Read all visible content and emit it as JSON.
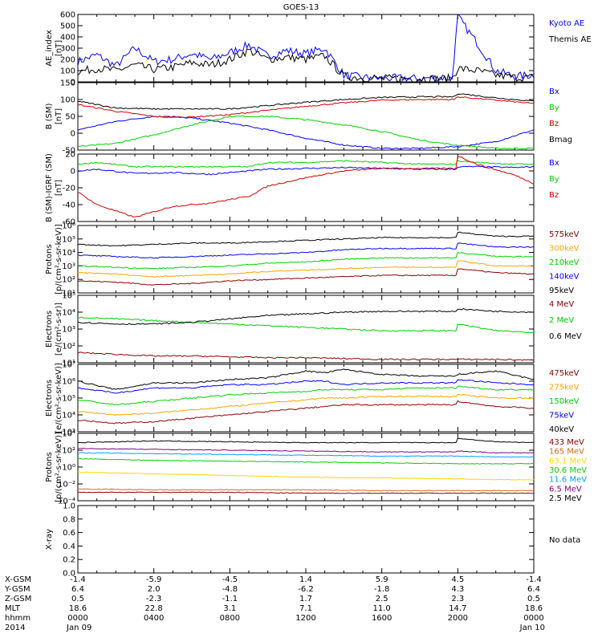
{
  "title": "GOES-13",
  "colors": {
    "black": "#000000",
    "blue": "#0000ff",
    "red": "#d40000",
    "green": "#00d000",
    "orange": "#ffa500",
    "darkred": "#8b0000",
    "teal": "#00b0b0",
    "yellow": "#ffff00",
    "purple": "#800080",
    "brown": "#a52a2a"
  },
  "chart_data": [
    {
      "type": "line",
      "ylabel": [
        "AE_index",
        "[nT]"
      ],
      "yscale": "linear",
      "ylim": [
        0,
        600
      ],
      "yticks": [
        "0",
        "100",
        "200",
        "300",
        "400",
        "500",
        "600"
      ],
      "legend": [
        {
          "name": "Kyoto AE",
          "color": "#0000ff"
        },
        {
          "name": "Themis AE",
          "color": "#000000"
        }
      ],
      "x": [
        0,
        1,
        2,
        3,
        4,
        5,
        6,
        7,
        8,
        9,
        10,
        11,
        12,
        13,
        14,
        15,
        16,
        17,
        18,
        19,
        19.7,
        20,
        21,
        22,
        23,
        24
      ],
      "series": [
        {
          "name": "Kyoto AE",
          "color": "#0000ff",
          "values": [
            180,
            240,
            140,
            300,
            180,
            200,
            250,
            200,
            260,
            330,
            230,
            280,
            250,
            300,
            60,
            40,
            30,
            35,
            30,
            40,
            30,
            580,
            350,
            100,
            50,
            60
          ]
        },
        {
          "name": "Themis AE",
          "color": "#000000",
          "values": [
            90,
            120,
            100,
            150,
            110,
            130,
            170,
            150,
            200,
            280,
            200,
            220,
            200,
            230,
            50,
            35,
            30,
            30,
            30,
            30,
            30,
            120,
            100,
            60,
            40,
            40
          ]
        }
      ]
    },
    {
      "type": "line",
      "ylabel": [
        "B (SM)",
        "[nT]"
      ],
      "yscale": "linear",
      "ylim": [
        -50,
        150
      ],
      "yticks": [
        "-50",
        "0",
        "50",
        "100",
        "150"
      ],
      "legend": [
        {
          "name": "Bx",
          "color": "#0000ff"
        },
        {
          "name": "By",
          "color": "#00d000"
        },
        {
          "name": "Bz",
          "color": "#d40000"
        },
        {
          "name": "Bmag",
          "color": "#000000"
        }
      ],
      "x": [
        0,
        2,
        4,
        6,
        8,
        10,
        12,
        14,
        16,
        18,
        19.8,
        20,
        22,
        24
      ],
      "series": [
        {
          "name": "Bx",
          "color": "#0000ff",
          "values": [
            10,
            35,
            50,
            45,
            30,
            10,
            -15,
            -35,
            -45,
            -45,
            -40,
            -40,
            -25,
            10
          ]
        },
        {
          "name": "By",
          "color": "#00d000",
          "values": [
            -40,
            -30,
            -5,
            25,
            50,
            50,
            40,
            25,
            5,
            -20,
            -35,
            -35,
            -45,
            -45
          ]
        },
        {
          "name": "Bz",
          "color": "#d40000",
          "values": [
            85,
            65,
            50,
            48,
            55,
            68,
            80,
            90,
            98,
            100,
            100,
            108,
            98,
            88
          ]
        },
        {
          "name": "Bmag",
          "color": "#000000",
          "values": [
            95,
            75,
            72,
            72,
            72,
            82,
            92,
            100,
            106,
            108,
            108,
            118,
            105,
            95
          ]
        }
      ]
    },
    {
      "type": "line",
      "ylabel": [
        "B (SM)-IGRF (SM)",
        "[nT]"
      ],
      "yscale": "linear",
      "ylim": [
        -60,
        20
      ],
      "yticks": [
        "-60",
        "-40",
        "-20",
        "0",
        "20"
      ],
      "legend": [
        {
          "name": "Bx",
          "color": "#0000ff"
        },
        {
          "name": "By",
          "color": "#00d000"
        },
        {
          "name": "Bz",
          "color": "#d40000"
        }
      ],
      "x": [
        0,
        1,
        3,
        5,
        7,
        9,
        10,
        12,
        14,
        16,
        18,
        19.9,
        20,
        21,
        23,
        24
      ],
      "series": [
        {
          "name": "Bx",
          "color": "#0000ff",
          "values": [
            0,
            2,
            -3,
            -2,
            -4,
            0,
            2,
            3,
            4,
            3,
            2,
            2,
            5,
            5,
            4,
            5
          ]
        },
        {
          "name": "By",
          "color": "#00d000",
          "values": [
            8,
            10,
            5,
            5,
            5,
            5,
            10,
            10,
            12,
            10,
            8,
            8,
            12,
            10,
            8,
            8
          ]
        },
        {
          "name": "Bz",
          "color": "#d40000",
          "values": [
            -25,
            -40,
            -55,
            -42,
            -38,
            -30,
            -18,
            -8,
            0,
            3,
            3,
            3,
            18,
            8,
            -5,
            -15
          ]
        }
      ]
    },
    {
      "type": "line",
      "ylabel": [
        "Protons",
        "[p/(cm²-s-sr-keV)]"
      ],
      "yscale": "log",
      "ylim": [
        1,
        6
      ],
      "yticks": [
        "10¹",
        "10²",
        "10³",
        "10⁴",
        "10⁵",
        "10⁶"
      ],
      "legend": [
        {
          "name": "575keV",
          "color": "#8b0000"
        },
        {
          "name": "300keV",
          "color": "#ffa500"
        },
        {
          "name": "210keV",
          "color": "#00d000"
        },
        {
          "name": "140keV",
          "color": "#0000ff"
        },
        {
          "name": "95keV",
          "color": "#000000"
        }
      ],
      "x": [
        0,
        2,
        4,
        6,
        8,
        10,
        12,
        14,
        16,
        18,
        19.9,
        20,
        22,
        24
      ],
      "series": [
        {
          "name": "575keV",
          "color": "#8b0000",
          "values": [
            1.9,
            1.8,
            1.6,
            1.7,
            1.9,
            2.0,
            2.1,
            2.2,
            2.3,
            2.3,
            2.3,
            2.8,
            2.5,
            2.4
          ]
        },
        {
          "name": "300keV",
          "color": "#ffa500",
          "values": [
            2.5,
            2.4,
            2.2,
            2.3,
            2.4,
            2.6,
            2.7,
            2.8,
            2.9,
            2.9,
            2.9,
            3.4,
            3.0,
            3.0
          ]
        },
        {
          "name": "210keV",
          "color": "#00d000",
          "values": [
            3.0,
            2.9,
            2.8,
            2.9,
            3.0,
            3.2,
            3.3,
            3.5,
            3.6,
            3.6,
            3.6,
            4.0,
            3.7,
            3.7
          ]
        },
        {
          "name": "140keV",
          "color": "#0000ff",
          "values": [
            3.8,
            3.7,
            3.6,
            3.7,
            3.8,
            3.9,
            4.0,
            4.2,
            4.3,
            4.3,
            4.3,
            4.7,
            4.4,
            4.4
          ]
        },
        {
          "name": "95keV",
          "color": "#000000",
          "values": [
            4.6,
            4.5,
            4.6,
            4.7,
            4.7,
            4.8,
            4.9,
            5.0,
            5.1,
            5.1,
            5.1,
            5.5,
            5.2,
            5.2
          ]
        }
      ]
    },
    {
      "type": "line",
      "ylabel": [
        "Electrons",
        "[e/(cm²-s-sr)]"
      ],
      "yscale": "log",
      "ylim": [
        1,
        5
      ],
      "yticks": [
        "10¹",
        "10²",
        "10³",
        "10⁴",
        "10⁵"
      ],
      "legend": [
        {
          "name": "4 MeV",
          "color": "#8b0000"
        },
        {
          "name": "2 MeV",
          "color": "#00d000"
        },
        {
          "name": "0.6 MeV",
          "color": "#000000"
        }
      ],
      "x": [
        0,
        2,
        4,
        6,
        8,
        10,
        12,
        14,
        16,
        18,
        19.9,
        20,
        22,
        24
      ],
      "series": [
        {
          "name": "4 MeV",
          "color": "#8b0000",
          "values": [
            1.6,
            1.5,
            1.4,
            1.4,
            1.35,
            1.3,
            1.3,
            1.25,
            1.2,
            1.2,
            1.2,
            1.2,
            1.2,
            1.15
          ]
        },
        {
          "name": "2 MeV",
          "color": "#00d000",
          "values": [
            3.7,
            3.6,
            3.5,
            3.4,
            3.3,
            3.2,
            3.1,
            3.0,
            2.9,
            2.9,
            2.9,
            3.3,
            2.9,
            2.8
          ]
        },
        {
          "name": "0.6 MeV",
          "color": "#000000",
          "values": [
            3.4,
            3.3,
            3.3,
            3.4,
            3.6,
            3.8,
            3.9,
            4.0,
            4.05,
            4.05,
            4.05,
            4.2,
            4.05,
            4.0
          ]
        }
      ]
    },
    {
      "type": "line",
      "ylabel": [
        "Electrons",
        "[e/(cm²-s-sr-keV)]"
      ],
      "yscale": "log",
      "ylim": [
        3,
        7
      ],
      "yticks": [
        "10³",
        "10⁴",
        "10⁵",
        "10⁶",
        "10⁷"
      ],
      "legend": [
        {
          "name": "475keV",
          "color": "#8b0000"
        },
        {
          "name": "275keV",
          "color": "#ffa500"
        },
        {
          "name": "150keV",
          "color": "#00d000"
        },
        {
          "name": "75keV",
          "color": "#0000ff"
        },
        {
          "name": "40keV",
          "color": "#000000"
        }
      ],
      "x": [
        0,
        2,
        4,
        6,
        8,
        10,
        12,
        13,
        14,
        16,
        18,
        19.9,
        20,
        22,
        24
      ],
      "series": [
        {
          "name": "475keV",
          "color": "#8b0000",
          "values": [
            3.7,
            3.5,
            3.6,
            3.8,
            4.0,
            4.2,
            4.4,
            4.5,
            4.6,
            4.6,
            4.6,
            4.6,
            4.8,
            4.5,
            4.4
          ]
        },
        {
          "name": "275keV",
          "color": "#ffa500",
          "values": [
            4.2,
            4.0,
            4.1,
            4.3,
            4.5,
            4.7,
            4.9,
            5.0,
            5.0,
            5.1,
            5.1,
            5.1,
            5.2,
            5.0,
            5.0
          ]
        },
        {
          "name": "150keV",
          "color": "#00d000",
          "values": [
            4.9,
            4.6,
            4.8,
            5.0,
            5.2,
            5.3,
            5.4,
            5.5,
            5.5,
            5.5,
            5.6,
            5.6,
            5.7,
            5.5,
            5.5
          ]
        },
        {
          "name": "75keV",
          "color": "#0000ff",
          "values": [
            5.6,
            5.3,
            5.6,
            5.6,
            5.8,
            5.8,
            6.0,
            6.0,
            5.8,
            5.9,
            5.9,
            5.9,
            6.1,
            5.9,
            5.8
          ]
        },
        {
          "name": "40keV",
          "color": "#000000",
          "values": [
            6.0,
            5.5,
            5.9,
            5.9,
            6.1,
            6.2,
            6.6,
            6.5,
            6.7,
            6.4,
            6.3,
            6.3,
            6.4,
            6.6,
            6.1
          ]
        }
      ]
    },
    {
      "type": "line",
      "ylabel": [
        "Protons",
        "[p/(cm²-s-sr-keV)]"
      ],
      "yscale": "log",
      "ylim": [
        -4,
        4
      ],
      "yticks": [
        "10⁻⁴",
        "10⁻²",
        "10⁰",
        "10²",
        "10⁴"
      ],
      "legend": [
        {
          "name": "433 MeV",
          "color": "#8b0000"
        },
        {
          "name": "165 MeV",
          "color": "#d2691e"
        },
        {
          "name": "63.1 MeV",
          "color": "#ffd700"
        },
        {
          "name": "30.6 MeV",
          "color": "#00d000"
        },
        {
          "name": "11.6 MeV",
          "color": "#00a0ff"
        },
        {
          "name": "6.5 MeV",
          "color": "#800080"
        },
        {
          "name": "2.5 MeV",
          "color": "#000000"
        }
      ],
      "x": [
        0,
        4,
        8,
        12,
        16,
        19.9,
        20,
        22,
        24
      ],
      "series": [
        {
          "name": "433 MeV",
          "color": "#8b0000",
          "values": [
            -3.0,
            -3.0,
            -3.0,
            -3.1,
            -3.1,
            -3.1,
            -3.1,
            -3.1,
            -3.1
          ]
        },
        {
          "name": "165 MeV",
          "color": "#d2691e",
          "values": [
            -2.6,
            -2.7,
            -2.7,
            -2.7,
            -2.8,
            -2.8,
            -2.8,
            -2.8,
            -2.8
          ]
        },
        {
          "name": "63.1 MeV",
          "color": "#ffd700",
          "values": [
            -0.6,
            -0.8,
            -1.0,
            -1.2,
            -1.3,
            -1.4,
            -1.4,
            -1.5,
            -1.5
          ]
        },
        {
          "name": "30.6 MeV",
          "color": "#00d000",
          "values": [
            1.0,
            0.8,
            0.7,
            0.6,
            0.5,
            0.4,
            0.4,
            0.4,
            0.4
          ]
        },
        {
          "name": "11.6 MeV",
          "color": "#00a0ff",
          "values": [
            1.7,
            1.6,
            1.5,
            1.4,
            1.3,
            1.3,
            1.3,
            1.2,
            1.2
          ]
        },
        {
          "name": "6.5 MeV",
          "color": "#800080",
          "values": [
            2.2,
            2.1,
            2.0,
            1.9,
            1.8,
            1.8,
            1.9,
            1.7,
            1.7
          ]
        },
        {
          "name": "2.5 MeV",
          "color": "#000000",
          "values": [
            2.9,
            3.1,
            3.0,
            2.9,
            2.9,
            2.9,
            3.4,
            3.0,
            2.9
          ]
        }
      ]
    },
    {
      "type": "line",
      "ylabel": [
        "X-ray",
        ""
      ],
      "yscale": "linear",
      "ylim": [
        0,
        1
      ],
      "yticks": [
        "0.0",
        "0.2",
        "0.4",
        "0.6",
        "0.8",
        "1.0"
      ],
      "legend": [
        {
          "name": "No data",
          "color": "#000000"
        }
      ],
      "x": [],
      "series": []
    }
  ],
  "orbit_rows": {
    "labels": [
      "X-GSM",
      "Y-GSM",
      "Z-GSM",
      "MLT",
      "hhmm",
      "2014"
    ],
    "columns": [
      [
        "-1.4",
        "6.4",
        "0.5",
        "18.6",
        "0000",
        "Jan 09"
      ],
      [
        "-5.9",
        "2.0",
        "-2.3",
        "22.8",
        "0400",
        ""
      ],
      [
        "-4.5",
        "-4.8",
        "-1.1",
        "3.1",
        "0800",
        ""
      ],
      [
        "1.4",
        "-6.2",
        "1.7",
        "7.1",
        "1200",
        ""
      ],
      [
        "5.9",
        "-1.8",
        "2.5",
        "11.0",
        "1600",
        ""
      ],
      [
        "4.5",
        "4.3",
        "2.3",
        "14.7",
        "2000",
        ""
      ],
      [
        "-1.4",
        "6.4",
        "0.5",
        "18.6",
        "0000",
        "Jan 10"
      ]
    ]
  }
}
